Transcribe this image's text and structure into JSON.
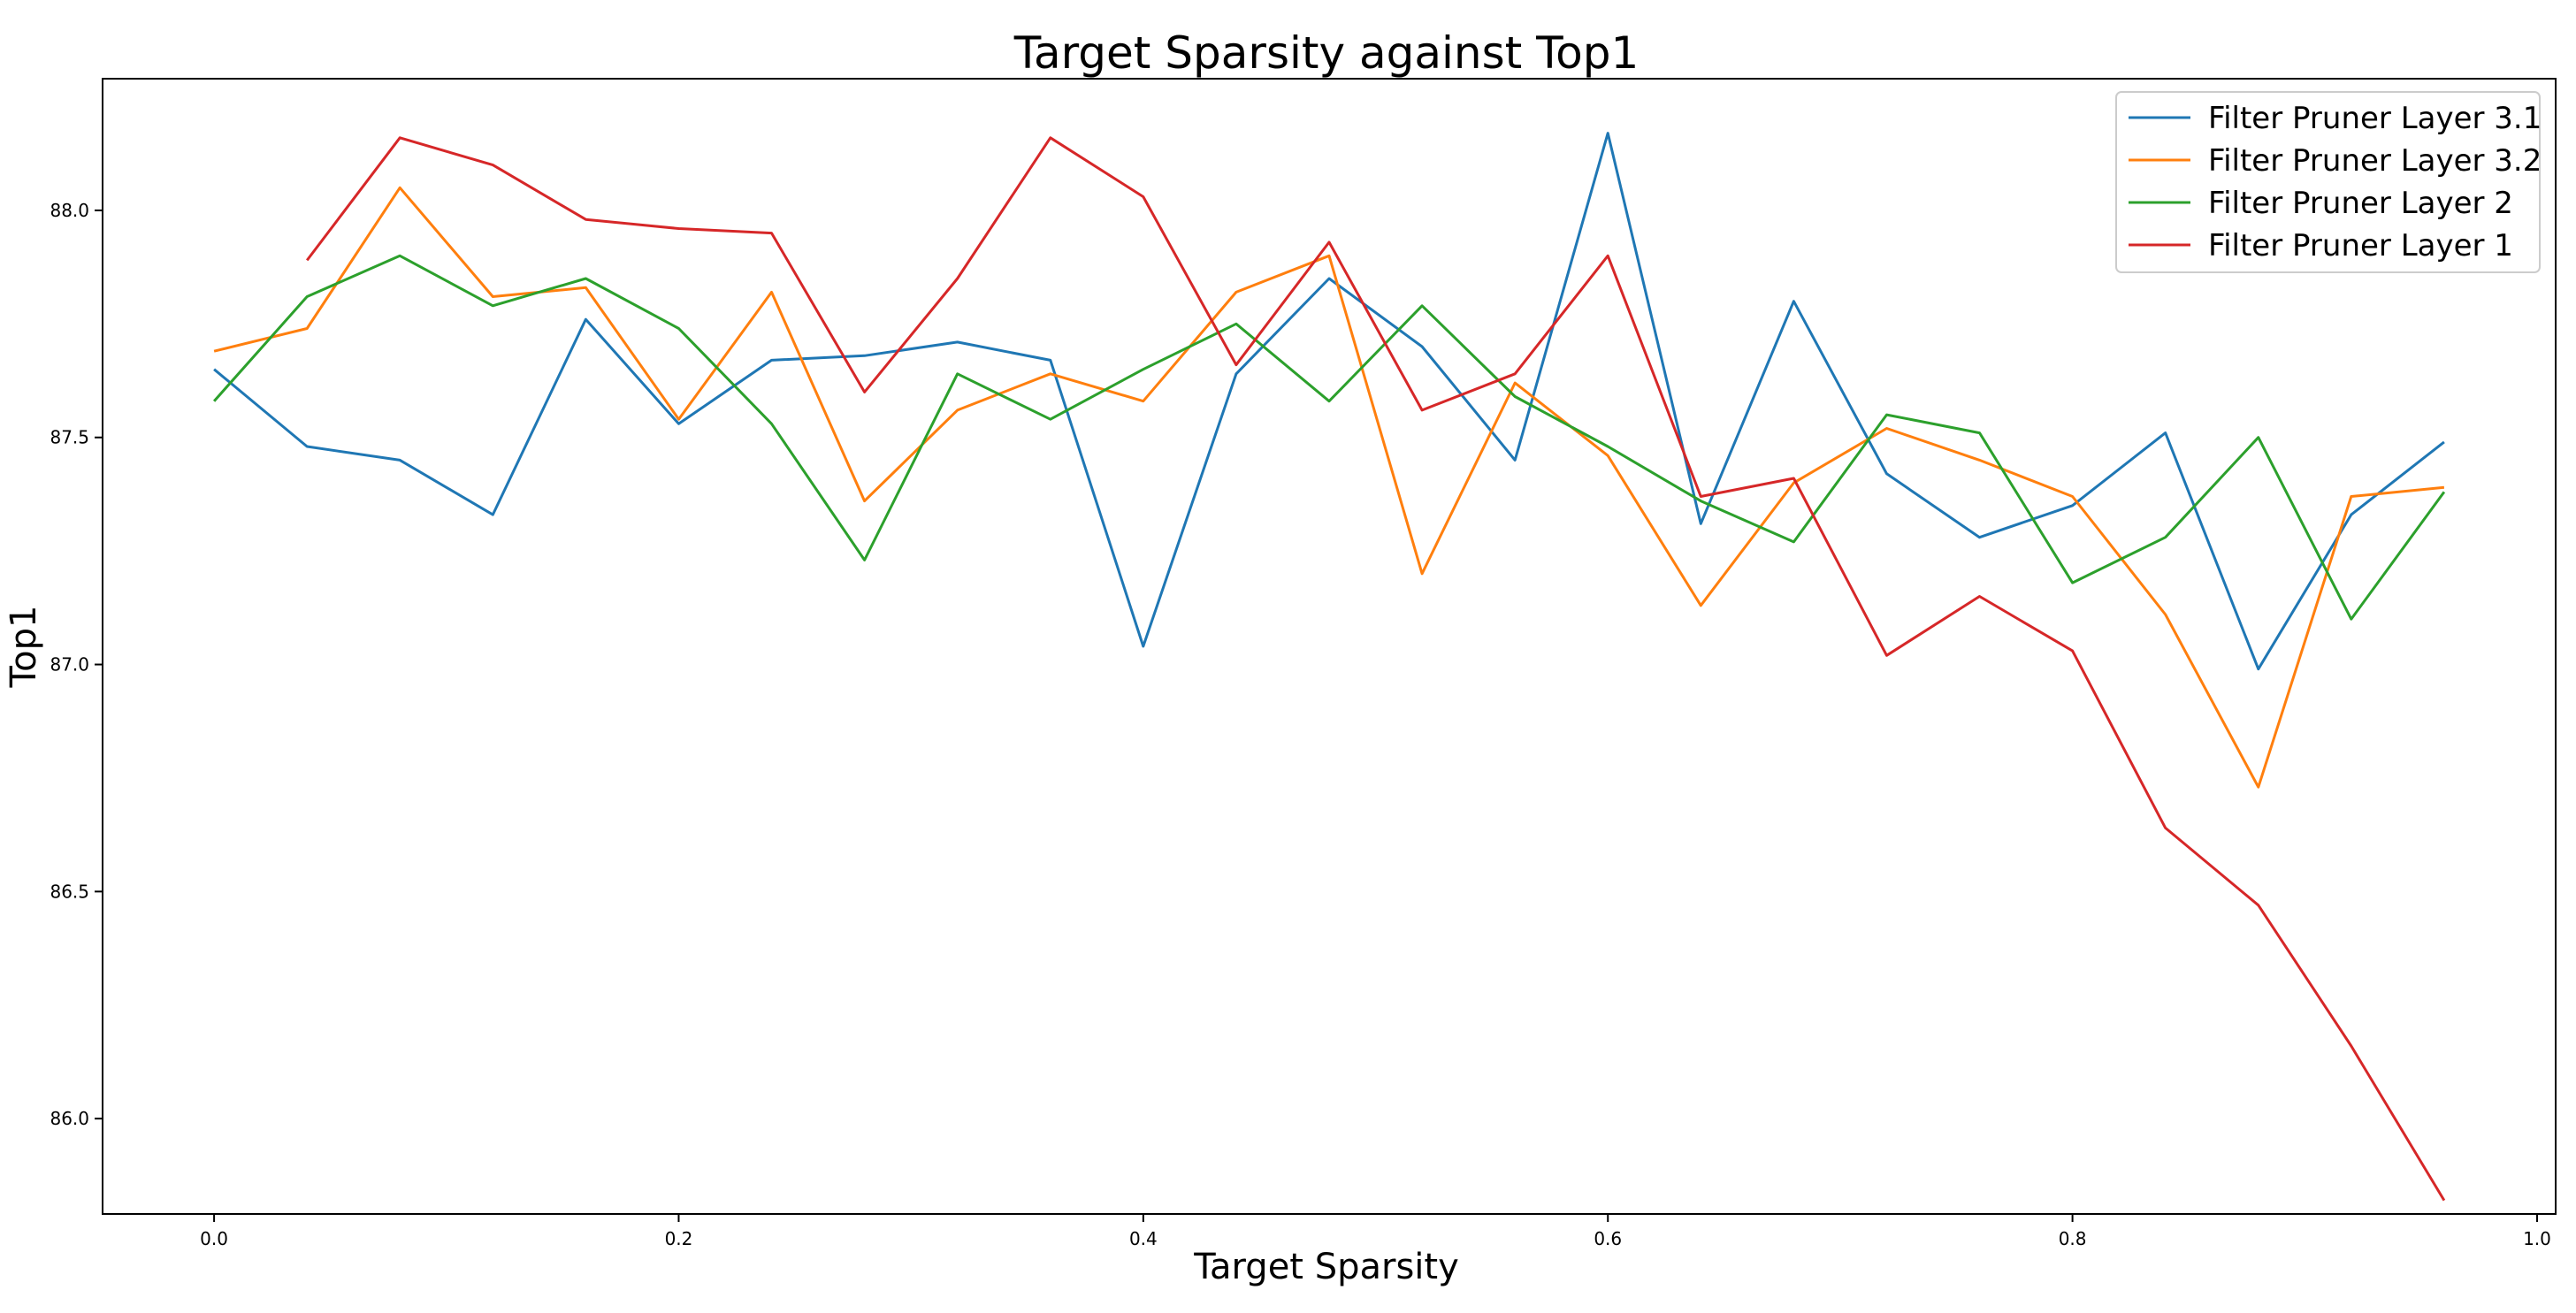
{
  "chart_data": {
    "type": "line",
    "title": "Target Sparsity against Top1",
    "xlabel": "Target Sparsity",
    "ylabel": "Top1",
    "xlim": [
      -0.048,
      1.008
    ],
    "ylim": [
      85.79,
      88.29
    ],
    "xticks": [
      0.0,
      0.2,
      0.4,
      0.6,
      0.8,
      1.0
    ],
    "xtick_labels": [
      "0.0",
      "0.2",
      "0.4",
      "0.6",
      "0.8",
      "1.0"
    ],
    "yticks": [
      86.0,
      86.5,
      87.0,
      87.5,
      88.0
    ],
    "ytick_labels": [
      "86.0",
      "86.5",
      "87.0",
      "87.5",
      "88.0"
    ],
    "grid": false,
    "legend_position": "top-right",
    "series": [
      {
        "name": "Filter Pruner Layer 3.1",
        "color": "#1f77b4",
        "x": [
          0.0,
          0.04,
          0.08,
          0.12,
          0.16,
          0.2,
          0.24,
          0.28,
          0.32,
          0.36,
          0.4,
          0.44,
          0.48,
          0.52,
          0.56,
          0.6,
          0.64,
          0.68,
          0.72,
          0.76,
          0.8,
          0.84,
          0.88,
          0.92,
          0.96
        ],
        "y": [
          87.65,
          87.48,
          87.45,
          87.33,
          87.76,
          87.53,
          87.67,
          87.68,
          87.71,
          87.67,
          87.04,
          87.64,
          87.85,
          87.7,
          87.45,
          88.17,
          87.31,
          87.8,
          87.42,
          87.28,
          87.35,
          87.51,
          86.99,
          87.33,
          87.49
        ]
      },
      {
        "name": "Filter Pruner Layer 3.2",
        "color": "#ff7f0e",
        "x": [
          0.0,
          0.04,
          0.08,
          0.12,
          0.16,
          0.2,
          0.24,
          0.28,
          0.32,
          0.36,
          0.4,
          0.44,
          0.48,
          0.52,
          0.56,
          0.6,
          0.64,
          0.68,
          0.72,
          0.76,
          0.8,
          0.84,
          0.88,
          0.92,
          0.96
        ],
        "y": [
          87.69,
          87.74,
          88.05,
          87.81,
          87.83,
          87.54,
          87.82,
          87.36,
          87.56,
          87.64,
          87.58,
          87.82,
          87.9,
          87.2,
          87.62,
          87.46,
          87.13,
          87.4,
          87.52,
          87.45,
          87.37,
          87.11,
          86.73,
          87.37,
          87.39
        ]
      },
      {
        "name": "Filter Pruner Layer 2",
        "color": "#2ca02c",
        "x": [
          0.0,
          0.04,
          0.08,
          0.12,
          0.16,
          0.2,
          0.24,
          0.28,
          0.32,
          0.36,
          0.4,
          0.44,
          0.48,
          0.52,
          0.56,
          0.6,
          0.64,
          0.68,
          0.72,
          0.76,
          0.8,
          0.84,
          0.88,
          0.92,
          0.96
        ],
        "y": [
          87.58,
          87.81,
          87.9,
          87.79,
          87.85,
          87.74,
          87.53,
          87.23,
          87.64,
          87.54,
          87.65,
          87.75,
          87.58,
          87.79,
          87.59,
          87.48,
          87.36,
          87.27,
          87.55,
          87.51,
          87.18,
          87.28,
          87.5,
          87.1,
          87.38
        ]
      },
      {
        "name": "Filter Pruner Layer 1",
        "color": "#d62728",
        "x": [
          0.04,
          0.08,
          0.12,
          0.16,
          0.2,
          0.24,
          0.28,
          0.32,
          0.36,
          0.4,
          0.44,
          0.48,
          0.52,
          0.56,
          0.6,
          0.64,
          0.68,
          0.72,
          0.76,
          0.8,
          0.84,
          0.88,
          0.92,
          0.96
        ],
        "y": [
          87.89,
          88.16,
          88.1,
          87.98,
          87.96,
          87.95,
          87.6,
          87.85,
          88.16,
          88.03,
          87.66,
          87.93,
          87.56,
          87.64,
          87.9,
          87.37,
          87.41,
          87.02,
          87.15,
          87.03,
          86.64,
          86.47,
          86.16,
          85.82
        ]
      }
    ]
  }
}
